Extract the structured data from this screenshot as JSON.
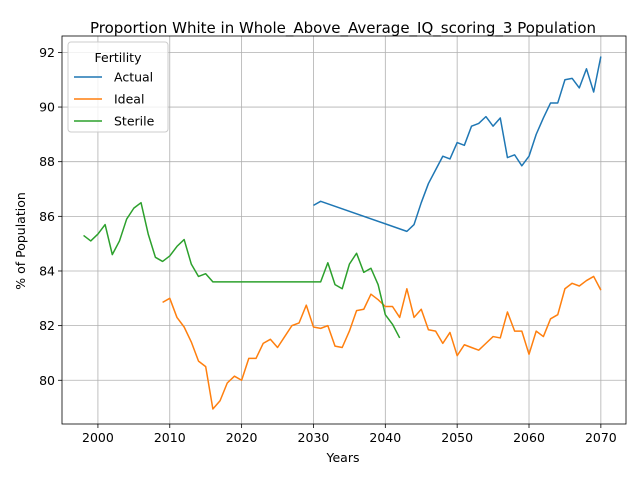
{
  "chart_data": {
    "type": "line",
    "title": "Proportion White in Whole_Above_Average_IQ_scoring_3 Population",
    "xlabel": "Years",
    "ylabel": "% of Population",
    "xlim": [
      1995,
      2073.5
    ],
    "ylim": [
      78.4,
      92.6
    ],
    "xticks": [
      2000,
      2010,
      2020,
      2030,
      2040,
      2050,
      2060,
      2070
    ],
    "yticks": [
      80,
      82,
      84,
      86,
      88,
      90,
      92
    ],
    "grid": true,
    "legend_title": "Fertility",
    "legend_position": "upper left",
    "colors": {
      "Actual": "#1f77b4",
      "Ideal": "#ff7f0e",
      "Sterile": "#2ca02c"
    },
    "series": [
      {
        "name": "Actual",
        "x": [
          2030,
          2031,
          2043,
          2044,
          2045,
          2046,
          2047,
          2048,
          2049,
          2050,
          2051,
          2052,
          2053,
          2054,
          2055,
          2056,
          2057,
          2058,
          2059,
          2060,
          2061,
          2062,
          2063,
          2064,
          2065,
          2066,
          2067,
          2068,
          2069,
          2070
        ],
        "values": [
          86.4,
          86.55,
          85.45,
          85.7,
          86.5,
          87.2,
          87.7,
          88.2,
          88.1,
          88.7,
          88.6,
          89.3,
          89.4,
          89.65,
          89.3,
          89.6,
          88.15,
          88.25,
          87.85,
          88.2,
          89.0,
          89.6,
          90.15,
          90.15,
          91.0,
          91.05,
          90.7,
          91.4,
          90.55,
          91.85
        ]
      },
      {
        "name": "Ideal",
        "x": [
          2009,
          2010,
          2011,
          2012,
          2013,
          2014,
          2015,
          2016,
          2017,
          2018,
          2019,
          2020,
          2021,
          2022,
          2023,
          2024,
          2025,
          2026,
          2027,
          2028,
          2029,
          2030,
          2031,
          2032,
          2033,
          2034,
          2035,
          2036,
          2037,
          2038,
          2039,
          2040,
          2041,
          2042,
          2043,
          2044,
          2045,
          2046,
          2047,
          2048,
          2049,
          2050,
          2051,
          2052,
          2053,
          2054,
          2055,
          2056,
          2057,
          2058,
          2059,
          2060,
          2061,
          2062,
          2063,
          2064,
          2065,
          2066,
          2067,
          2068,
          2069,
          2070
        ],
        "values": [
          82.85,
          83.0,
          82.3,
          81.95,
          81.4,
          80.7,
          80.5,
          78.95,
          79.25,
          79.9,
          80.15,
          80.0,
          80.8,
          80.8,
          81.35,
          81.5,
          81.2,
          81.6,
          82.0,
          82.1,
          82.75,
          81.95,
          81.9,
          82.0,
          81.25,
          81.2,
          81.8,
          82.55,
          82.6,
          83.15,
          82.95,
          82.7,
          82.7,
          82.3,
          83.35,
          82.3,
          82.6,
          81.85,
          81.8,
          81.35,
          81.75,
          80.9,
          81.3,
          81.2,
          81.1,
          81.35,
          81.6,
          81.55,
          82.5,
          81.8,
          81.8,
          80.95,
          81.8,
          81.6,
          82.25,
          82.4,
          83.35,
          83.55,
          83.45,
          83.65,
          83.8,
          83.3
        ]
      },
      {
        "name": "Sterile",
        "x": [
          1998,
          1999,
          2000,
          2001,
          2002,
          2003,
          2004,
          2005,
          2006,
          2007,
          2008,
          2009,
          2010,
          2011,
          2012,
          2013,
          2014,
          2015,
          2016,
          2030,
          2031,
          2032,
          2033,
          2034,
          2035,
          2036,
          2037,
          2038,
          2039,
          2040,
          2041,
          2042
        ],
        "values": [
          85.3,
          85.1,
          85.35,
          85.7,
          84.6,
          85.1,
          85.9,
          86.3,
          86.5,
          85.35,
          84.5,
          84.35,
          84.55,
          84.9,
          85.15,
          84.25,
          83.8,
          83.9,
          83.6,
          83.6,
          83.6,
          84.3,
          83.5,
          83.35,
          84.25,
          84.65,
          83.95,
          84.1,
          83.5,
          82.4,
          82.05,
          81.55
        ]
      }
    ]
  }
}
